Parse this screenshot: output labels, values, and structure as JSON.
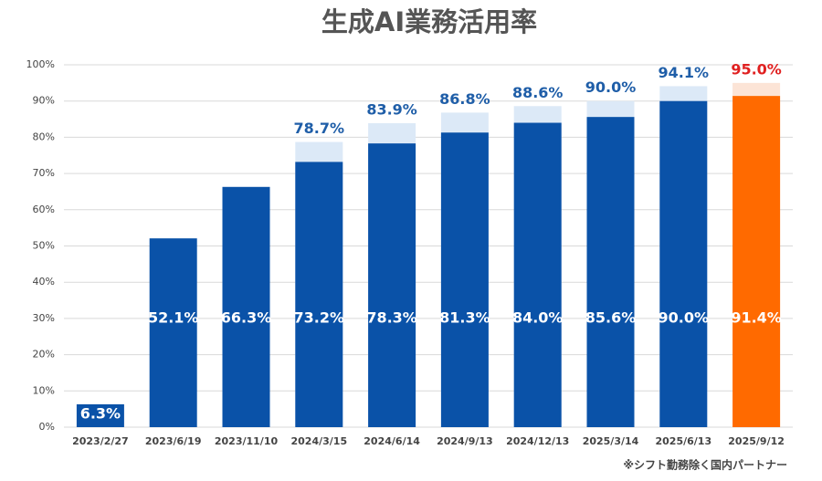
{
  "chart_data": {
    "type": "bar",
    "title": "生成AI業務活用率",
    "categories": [
      "2023/2/27",
      "2023/6/19",
      "2023/11/10",
      "2024/3/15",
      "2024/6/14",
      "2024/9/13",
      "2024/12/13",
      "2025/3/14",
      "2025/6/13",
      "2025/9/12"
    ],
    "series": [
      {
        "name": "total",
        "values": [
          null,
          null,
          null,
          78.7,
          83.9,
          86.8,
          88.6,
          90.0,
          94.1,
          95.0
        ],
        "value_labels": [
          null,
          null,
          null,
          "78.7%",
          "83.9%",
          "86.8%",
          "88.6%",
          "90.0%",
          "94.1%",
          "95.0%"
        ],
        "colors": [
          "#dce9f7",
          "#dce9f7",
          "#dce9f7",
          "#dce9f7",
          "#dce9f7",
          "#dce9f7",
          "#dce9f7",
          "#dce9f7",
          "#dce9f7",
          "#fce4d6"
        ],
        "label_colors": [
          "#1f5ea8",
          "#1f5ea8",
          "#1f5ea8",
          "#1f5ea8",
          "#1f5ea8",
          "#1f5ea8",
          "#1f5ea8",
          "#1f5ea8",
          "#1f5ea8",
          "#e02020"
        ]
      },
      {
        "name": "inner",
        "values": [
          6.3,
          52.1,
          66.3,
          73.2,
          78.3,
          81.3,
          84.0,
          85.6,
          90.0,
          91.4
        ],
        "value_labels": [
          "6.3%",
          "52.1%",
          "66.3%",
          "73.2%",
          "78.3%",
          "81.3%",
          "84.0%",
          "85.6%",
          "90.0%",
          "91.4%"
        ],
        "colors": [
          "#0a52a8",
          "#0a52a8",
          "#0a52a8",
          "#0a52a8",
          "#0a52a8",
          "#0a52a8",
          "#0a52a8",
          "#0a52a8",
          "#0a52a8",
          "#ff6a00"
        ],
        "label_colors": [
          "#ffffff",
          "#ffffff",
          "#ffffff",
          "#ffffff",
          "#ffffff",
          "#ffffff",
          "#ffffff",
          "#ffffff",
          "#ffffff",
          "#ffffff"
        ]
      }
    ],
    "ylim": [
      0,
      100
    ],
    "yticks": [
      {
        "value": 0,
        "label": "0%"
      },
      {
        "value": 10,
        "label": "10%"
      },
      {
        "value": 20,
        "label": "20%"
      },
      {
        "value": 30,
        "label": "30%"
      },
      {
        "value": 40,
        "label": "40%"
      },
      {
        "value": 50,
        "label": "50%"
      },
      {
        "value": 60,
        "label": "60%"
      },
      {
        "value": 70,
        "label": "70%"
      },
      {
        "value": 80,
        "label": "80%"
      },
      {
        "value": 90,
        "label": "90%"
      },
      {
        "value": 100,
        "label": "100%"
      }
    ],
    "grid": true,
    "note": "※シフト勤務除く国内パートナー"
  }
}
